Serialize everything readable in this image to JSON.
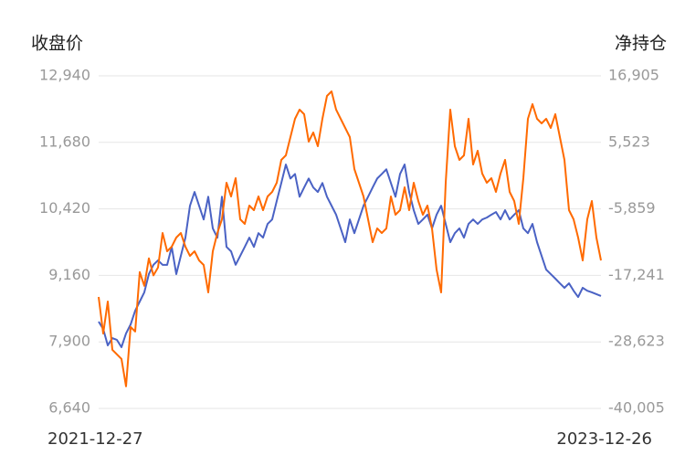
{
  "chart_data": {
    "type": "line",
    "y_label": "收盘价",
    "y2_label": "净持仓",
    "categories": [
      "2021-12-27",
      null,
      null,
      null,
      null,
      null,
      null,
      null,
      null,
      null,
      null,
      null,
      null,
      null,
      null,
      null,
      null,
      null,
      null,
      null,
      null,
      null,
      null,
      null,
      null,
      null,
      null,
      null,
      null,
      null,
      null,
      null,
      null,
      null,
      null,
      null,
      null,
      null,
      null,
      null,
      null,
      null,
      null,
      null,
      null,
      null,
      null,
      null,
      null,
      null,
      null,
      null,
      null,
      null,
      null,
      null,
      null,
      null,
      null,
      null,
      null,
      null,
      null,
      null,
      null,
      null,
      null,
      null,
      null,
      null,
      null,
      null,
      null,
      null,
      null,
      null,
      null,
      null,
      null,
      null,
      null,
      null,
      null,
      null,
      null,
      null,
      null,
      null,
      null,
      null,
      null,
      null,
      null,
      null,
      null,
      null,
      null,
      null,
      null,
      null,
      null,
      null,
      null,
      null,
      null,
      null,
      null,
      null,
      null,
      null,
      "2023-12-26"
    ],
    "series": [
      {
        "color": "#4a62c4",
        "values": [
          8284,
          8145,
          7834,
          7972,
          7938,
          7800,
          8060,
          8230,
          8490,
          8665,
          8840,
          9185,
          9360,
          9445,
          9360,
          9360,
          9700,
          9185,
          9530,
          9875,
          10480,
          10740,
          10480,
          10220,
          10650,
          10050,
          9875,
          10650,
          9700,
          9615,
          9360,
          9530,
          9700,
          9875,
          9700,
          9960,
          9875,
          10135,
          10220,
          10570,
          10910,
          11260,
          10995,
          11080,
          10650,
          10825,
          10995,
          10825,
          10740,
          10910,
          10650,
          10480,
          10310,
          10050,
          9790,
          10220,
          9960,
          10220,
          10480,
          10650,
          10825,
          10995,
          11080,
          11170,
          10910,
          10650,
          11080,
          11260,
          10740,
          10395,
          10135,
          10220,
          10310,
          10050,
          10310,
          10480,
          10135,
          9790,
          9960,
          10050,
          9875,
          10135,
          10220,
          10135,
          10220,
          10255,
          10310,
          10360,
          10220,
          10395,
          10220,
          10310,
          10395,
          10050,
          9960,
          10135,
          9790,
          9530,
          9270,
          9185,
          9100,
          9010,
          8925,
          9010,
          8870,
          8750,
          8925,
          8870,
          8840,
          8805,
          8770
        ]
      },
      {
        "color": "#ff6a00",
        "axis": "y2",
        "values": [
          -20932,
          -27186,
          -21713,
          -29967,
          -30749,
          -31531,
          -36221,
          -26058,
          -26840,
          -16678,
          -19023,
          -14332,
          -17241,
          -15896,
          -9987,
          -13114,
          -12332,
          -10769,
          -9987,
          -12332,
          -13896,
          -13114,
          -14677,
          -15460,
          -20150,
          -13114,
          -9987,
          -7641,
          -1388,
          -3733,
          -606,
          -7641,
          -8423,
          -5296,
          -6078,
          -3733,
          -6078,
          -3733,
          -2951,
          -1388,
          2521,
          3303,
          6430,
          9557,
          11121,
          10339,
          5648,
          7212,
          4867,
          9557,
          13465,
          14247,
          11121,
          9557,
          7993,
          6430,
          957,
          -1388,
          -3733,
          -7641,
          -11550,
          -9205,
          -9987,
          -9205,
          -3733,
          -6860,
          -6078,
          -2170,
          -6078,
          -1388,
          -4515,
          -6860,
          -5296,
          -9205,
          -16241,
          -20150,
          -1388,
          11121,
          4867,
          2521,
          3303,
          9557,
          1739,
          4084,
          175,
          -1388,
          -606,
          -2951,
          175,
          2521,
          -2951,
          -4515,
          -8423,
          -606,
          9557,
          12058,
          9557,
          8775,
          9557,
          7993,
          10339,
          6430,
          2521,
          -6078,
          -7641,
          -10769,
          -14677,
          -7641,
          -4515,
          -10769,
          -14677
        ]
      }
    ],
    "ylim": [
      6640,
      12940
    ],
    "yticks": [
      {
        "value": 6640,
        "label": "6,640"
      },
      {
        "value": 7900,
        "label": "7,900"
      },
      {
        "value": 9160,
        "label": "9,160"
      },
      {
        "value": 10420,
        "label": "10,420"
      },
      {
        "value": 11680,
        "label": "11,680"
      },
      {
        "value": 12940,
        "label": "12,940"
      }
    ],
    "y2lim": [
      -40005,
      16905
    ],
    "y2ticks": [
      {
        "value": -40005,
        "label": "-40,005"
      },
      {
        "value": -28623,
        "label": "-28,623"
      },
      {
        "value": -17241,
        "label": "-17,241"
      },
      {
        "value": -5859,
        "label": "-5,859"
      },
      {
        "value": 5523,
        "label": "5,523"
      },
      {
        "value": 16905,
        "label": "16,905"
      }
    ],
    "grid": true
  }
}
